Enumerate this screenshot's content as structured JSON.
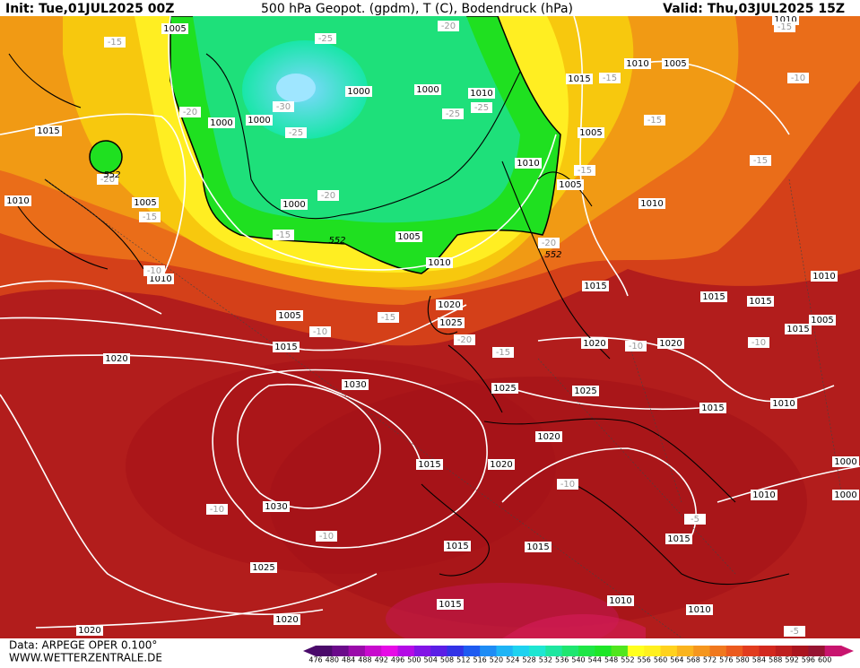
{
  "header": {
    "init": "Init: Tue,01JUL2025 00Z",
    "title": "500 hPa Geopot. (gpdm), T (C), Bodendruck (hPa)",
    "valid": "Valid: Thu,03JUL2025 15Z"
  },
  "footer": {
    "data_source": "Data: ARPEGE OPER 0.100°",
    "website": "WWW.WETTERZENTRALE.DE"
  },
  "map": {
    "pressure_labels": [
      1005,
      1010,
      1010,
      1005,
      1015,
      1000,
      1000,
      1010,
      1000,
      1000,
      1015,
      1005,
      1010,
      1005,
      1010,
      1005,
      1010,
      1000,
      1005,
      1010,
      1010,
      1015,
      1010,
      1015,
      1015,
      1020,
      1005,
      1025,
      1005,
      1015,
      1015,
      1020,
      1020,
      1020,
      1030,
      1025,
      1025,
      1015,
      1010,
      1020,
      1015,
      1020,
      1000,
      1010,
      1000,
      1030,
      1015,
      1015,
      1015,
      1025,
      1010,
      1015,
      1010,
      1020,
      1020
    ],
    "temperature_labels": [
      -15,
      -25,
      -20,
      -30,
      -25,
      -25,
      -20,
      -15,
      -10,
      -25,
      -15,
      -20,
      -15,
      -15,
      -15,
      -20,
      -15,
      -20,
      -10,
      -15,
      -10,
      -20,
      -15,
      -10,
      -10,
      -10,
      -10,
      -10,
      -5,
      -5,
      -15
    ],
    "geopotential_labels": [
      552,
      552,
      552
    ]
  },
  "colorbar": {
    "ticks": [
      476,
      480,
      484,
      488,
      492,
      496,
      500,
      504,
      508,
      512,
      516,
      520,
      524,
      528,
      532,
      536,
      540,
      544,
      548,
      552,
      556,
      560,
      564,
      568,
      572,
      576,
      580,
      584,
      588,
      592,
      596,
      600
    ],
    "colors": [
      "#4a0a6a",
      "#6a0a8a",
      "#9a0aaa",
      "#c80acd",
      "#e60ae6",
      "#b40ae6",
      "#8214e6",
      "#5a1ee6",
      "#3232e6",
      "#1e5af0",
      "#1e8cf5",
      "#1eb4f5",
      "#1ed2f0",
      "#1ee6d2",
      "#1ee6a0",
      "#1ee670",
      "#1ee646",
      "#1ee628",
      "#50e61e",
      "#ffff1e",
      "#fff01e",
      "#ffd21e",
      "#fab41e",
      "#f5961e",
      "#f0781e",
      "#eb5a1e",
      "#e13c1e",
      "#d2281e",
      "#be1e1e",
      "#aa141e",
      "#961432",
      "#c8146e"
    ]
  }
}
